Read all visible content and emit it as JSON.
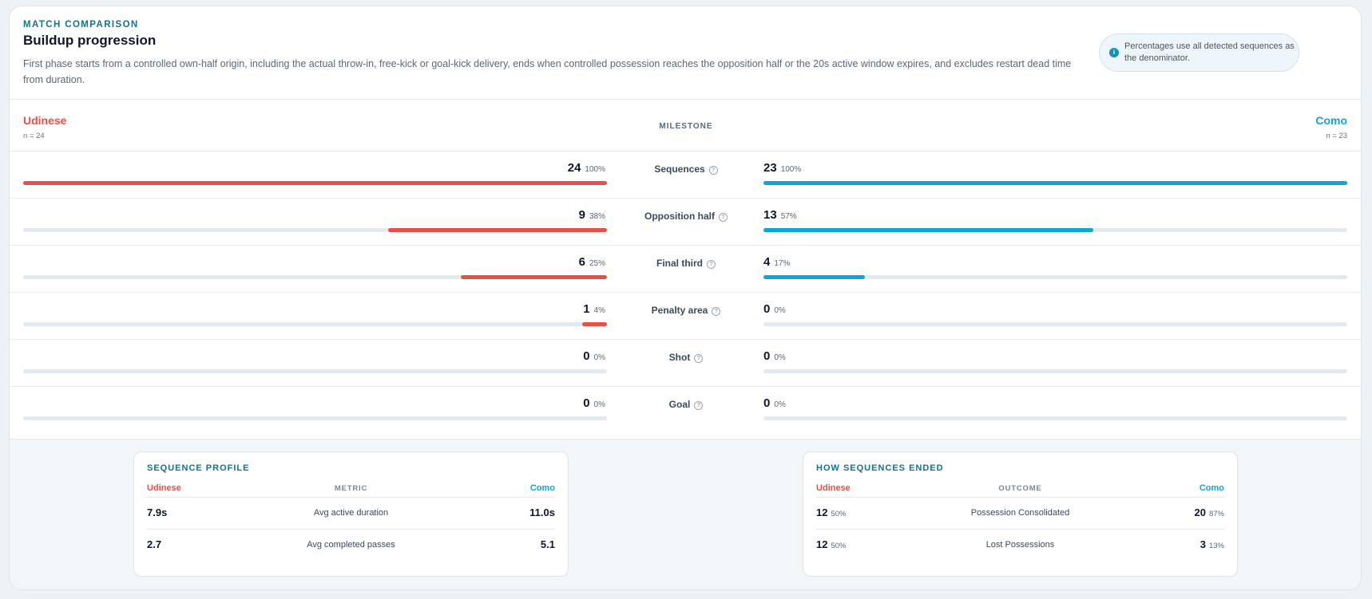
{
  "header": {
    "eyebrow": "MATCH COMPARISON",
    "title": "Buildup progression",
    "description": "First phase starts from a controlled own-half origin, including the actual throw-in, free-kick or goal-kick delivery, ends when controlled possession reaches the opposition half or the 20s active window expires, and excludes restart dead time from duration.",
    "note": "Percentages use all detected sequences as the denominator.",
    "note_icon": "info-icon"
  },
  "teams": {
    "left": {
      "name": "Udinese",
      "n": "n = 24",
      "color": "#ea4f43"
    },
    "right": {
      "name": "Como",
      "n": "n = 23",
      "color": "#0ea5d8"
    }
  },
  "milestone_header": "MILESTONE",
  "milestones": [
    {
      "label": "Sequences",
      "left_value": "24",
      "left_pct": "100%",
      "left_fraction": 1.0,
      "right_value": "23",
      "right_pct": "100%",
      "right_fraction": 1.0
    },
    {
      "label": "Opposition half",
      "left_value": "9",
      "left_pct": "38%",
      "left_fraction": 0.375,
      "right_value": "13",
      "right_pct": "57%",
      "right_fraction": 0.565
    },
    {
      "label": "Final third",
      "left_value": "6",
      "left_pct": "25%",
      "left_fraction": 0.25,
      "right_value": "4",
      "right_pct": "17%",
      "right_fraction": 0.174
    },
    {
      "label": "Penalty area",
      "left_value": "1",
      "left_pct": "4%",
      "left_fraction": 0.042,
      "right_value": "0",
      "right_pct": "0%",
      "right_fraction": 0
    },
    {
      "label": "Shot",
      "left_value": "0",
      "left_pct": "0%",
      "left_fraction": 0,
      "right_value": "0",
      "right_pct": "0%",
      "right_fraction": 0
    },
    {
      "label": "Goal",
      "left_value": "0",
      "left_pct": "0%",
      "left_fraction": 0,
      "right_value": "0",
      "right_pct": "0%",
      "right_fraction": 0
    }
  ],
  "help_glyph": "?",
  "sequence_profile": {
    "title": "SEQUENCE PROFILE",
    "left_header": "Udinese",
    "center_header": "METRIC",
    "right_header": "Como",
    "rows": [
      {
        "left": "7.9s",
        "metric": "Avg active duration",
        "right": "11.0s"
      },
      {
        "left": "2.7",
        "metric": "Avg completed passes",
        "right": "5.1"
      }
    ]
  },
  "sequence_endings": {
    "title": "HOW SEQUENCES ENDED",
    "left_header": "Udinese",
    "center_header": "OUTCOME",
    "right_header": "Como",
    "rows": [
      {
        "left": "12",
        "left_pct": "50%",
        "outcome": "Possession Consolidated",
        "right": "20",
        "right_pct": "87%"
      },
      {
        "left": "12",
        "left_pct": "50%",
        "outcome": "Lost Possessions",
        "right": "3",
        "right_pct": "13%"
      }
    ]
  }
}
